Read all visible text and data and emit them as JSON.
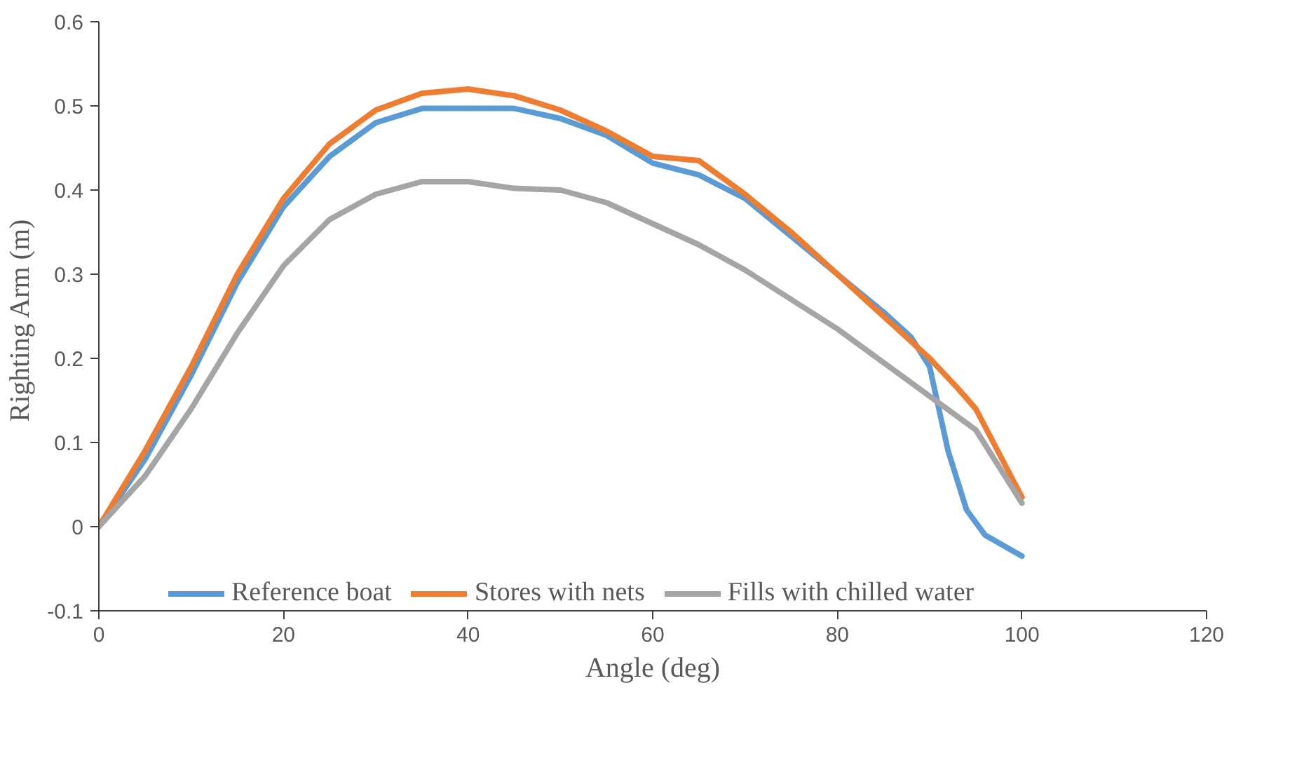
{
  "chart_data": {
    "type": "line",
    "xlabel": "Angle (deg)",
    "ylabel": "Righting Arm  (m)",
    "xlim": [
      0,
      120
    ],
    "xticks": [
      0,
      20,
      40,
      60,
      80,
      100,
      120
    ],
    "ylim": [
      -0.1,
      0.6
    ],
    "yticks": [
      -0.1,
      0,
      0.1,
      0.2,
      0.3,
      0.4,
      0.5,
      0.6
    ],
    "grid": false,
    "legend": "bottom",
    "marker": "none",
    "line_style": "solid",
    "series": [
      {
        "name": "Reference boat",
        "color": "#5b9bd5",
        "x": [
          0,
          5,
          10,
          15,
          20,
          25,
          30,
          35,
          40,
          45,
          50,
          55,
          60,
          65,
          70,
          75,
          80,
          85,
          88,
          90,
          92,
          94,
          96,
          100
        ],
        "values": [
          0,
          0.08,
          0.18,
          0.29,
          0.38,
          0.44,
          0.48,
          0.497,
          0.497,
          0.497,
          0.485,
          0.465,
          0.432,
          0.418,
          0.39,
          0.345,
          0.3,
          0.255,
          0.225,
          0.19,
          0.09,
          0.02,
          -0.01,
          -0.035
        ]
      },
      {
        "name": "Stores with nets",
        "color": "#ed7d31",
        "x": [
          0,
          5,
          10,
          15,
          20,
          25,
          30,
          35,
          40,
          45,
          50,
          55,
          60,
          65,
          70,
          75,
          80,
          85,
          90,
          93,
          95,
          100
        ],
        "values": [
          0,
          0.09,
          0.19,
          0.3,
          0.39,
          0.455,
          0.495,
          0.515,
          0.52,
          0.512,
          0.495,
          0.47,
          0.44,
          0.435,
          0.395,
          0.35,
          0.3,
          0.25,
          0.2,
          0.165,
          0.14,
          0.035
        ]
      },
      {
        "name": "Fills with chilled water",
        "color": "#a5a5a5",
        "x": [
          0,
          5,
          10,
          15,
          20,
          25,
          30,
          35,
          40,
          45,
          50,
          55,
          60,
          65,
          70,
          75,
          80,
          85,
          90,
          95,
          100
        ],
        "values": [
          0,
          0.06,
          0.14,
          0.23,
          0.31,
          0.365,
          0.395,
          0.41,
          0.41,
          0.402,
          0.4,
          0.385,
          0.36,
          0.335,
          0.305,
          0.27,
          0.235,
          0.195,
          0.155,
          0.115,
          0.028
        ]
      }
    ]
  }
}
